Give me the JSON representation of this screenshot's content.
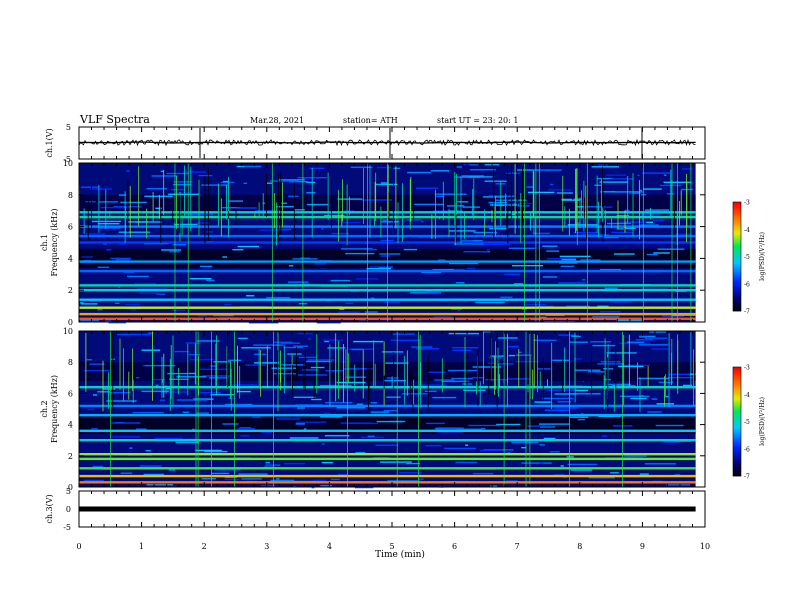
{
  "header": {
    "title": "VLF Spectra",
    "date": "Mar.28, 2021",
    "station": "station= ATH",
    "start": "start  UT =   23: 20: 1"
  },
  "chart_data": [
    {
      "type": "line",
      "name": "ch1-voltage",
      "ylabel": "ch.1(V)",
      "ylim": [
        -5,
        5
      ],
      "yticks": [
        "5",
        "-5"
      ],
      "xlim": [
        0,
        10
      ],
      "x": [
        0,
        0.5,
        1,
        1.5,
        2,
        2.5,
        3,
        3.5,
        4,
        4.5,
        5,
        5.5,
        6,
        6.5,
        7,
        7.5,
        8,
        8.5,
        9,
        9.5,
        9.85
      ],
      "values": [
        0.2,
        0.1,
        0.3,
        0.0,
        0.2,
        0.1,
        0.2,
        0.0,
        0.3,
        0.1,
        0.2,
        0.0,
        0.2,
        0.1,
        0.3,
        0.0,
        0.2,
        0.1,
        0.2,
        0.1,
        0.2
      ]
    },
    {
      "type": "heatmap",
      "name": "ch1-spectrogram",
      "ylabel1": "ch.1",
      "ylabel2": "Frequency (kHz)",
      "ylim": [
        0,
        10
      ],
      "yticks": [
        "0",
        "2",
        "4",
        "6",
        "8",
        "10"
      ],
      "xlim": [
        0,
        9.85
      ],
      "colorbar": {
        "label": "log(PSD)(V²/Hz)",
        "range": [
          -7,
          -3
        ],
        "ticks": [
          "-3",
          "-4",
          "-5",
          "-6",
          "-7"
        ]
      },
      "bands": [
        {
          "f": 0.2,
          "level": -3.4
        },
        {
          "f": 0.5,
          "level": -3.8
        },
        {
          "f": 0.9,
          "level": -4.2
        },
        {
          "f": 1.4,
          "level": -5.2
        },
        {
          "f": 2.0,
          "level": -5.0
        },
        {
          "f": 2.3,
          "level": -4.9
        },
        {
          "f": 3.2,
          "level": -5.6
        },
        {
          "f": 3.8,
          "level": -5.4
        },
        {
          "f": 5.0,
          "level": -5.8
        },
        {
          "f": 5.4,
          "level": -5.6
        },
        {
          "f": 6.0,
          "level": -5.5
        },
        {
          "f": 6.6,
          "level": -4.8
        },
        {
          "f": 6.9,
          "level": -5.0
        }
      ]
    },
    {
      "type": "heatmap",
      "name": "ch2-spectrogram",
      "ylabel1": "ch.2",
      "ylabel2": "Frequency (kHz)",
      "ylim": [
        0,
        10
      ],
      "yticks": [
        "0",
        "2",
        "4",
        "6",
        "8",
        "10"
      ],
      "xlim": [
        0,
        9.85
      ],
      "colorbar": {
        "label": "log(PSD)(V²/Hz)",
        "range": [
          -7,
          -3
        ],
        "ticks": [
          "-3",
          "-4",
          "-5",
          "-6",
          "-7"
        ]
      },
      "bands": [
        {
          "f": 0.3,
          "level": -3.6
        },
        {
          "f": 0.7,
          "level": -3.9
        },
        {
          "f": 1.2,
          "level": -4.5
        },
        {
          "f": 1.8,
          "level": -4.4
        },
        {
          "f": 2.1,
          "level": -4.3
        },
        {
          "f": 3.0,
          "level": -5.0
        },
        {
          "f": 3.6,
          "level": -5.2
        },
        {
          "f": 4.6,
          "level": -5.3
        },
        {
          "f": 5.2,
          "level": -5.5
        },
        {
          "f": 6.4,
          "level": -5.0
        }
      ]
    },
    {
      "type": "line",
      "name": "ch3-voltage",
      "ylabel": "ch.3(V)",
      "ylim": [
        -5,
        5
      ],
      "yticks": [
        "5",
        "0",
        "-5"
      ],
      "xlim": [
        0,
        10
      ],
      "x": [
        0,
        9.85
      ],
      "values": [
        0,
        0
      ]
    }
  ],
  "xaxis": {
    "label": "Time  (min)",
    "ticks": [
      "0",
      "1",
      "2",
      "3",
      "4",
      "5",
      "6",
      "7",
      "8",
      "9",
      "10"
    ],
    "range": [
      0,
      10
    ]
  }
}
